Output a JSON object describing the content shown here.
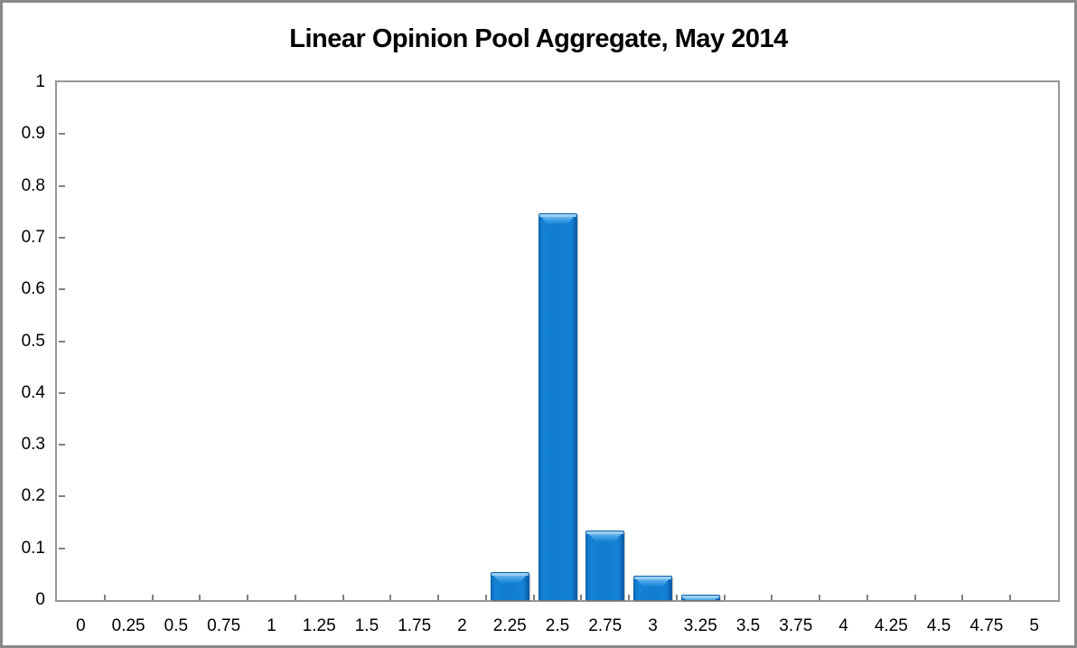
{
  "chart_data": {
    "type": "bar",
    "title": "Linear Opinion Pool Aggregate, May 2014",
    "categories": [
      "0",
      "0.25",
      "0.5",
      "0.75",
      "1",
      "1.25",
      "1.5",
      "1.75",
      "2",
      "2.25",
      "2.5",
      "2.75",
      "3",
      "3.25",
      "3.5",
      "3.75",
      "4",
      "4.25",
      "4.5",
      "4.75",
      "5"
    ],
    "values": [
      0,
      0,
      0,
      0,
      0,
      0,
      0,
      0,
      0,
      0.054,
      0.747,
      0.135,
      0.047,
      0.01,
      0,
      0,
      0,
      0,
      0,
      0,
      0
    ],
    "xlabel": "",
    "ylabel": "",
    "ylim": [
      0,
      1
    ],
    "ytick_values": [
      0,
      0.1,
      0.2,
      0.3,
      0.4,
      0.5,
      0.6,
      0.7,
      0.8,
      0.9,
      1
    ],
    "ytick_labels": [
      "0",
      "0.1",
      "0.2",
      "0.3",
      "0.4",
      "0.5",
      "0.6",
      "0.7",
      "0.8",
      "0.9",
      "1"
    ],
    "grid": "off",
    "legend": "none",
    "colors": {
      "bar_fill": "#0f7ccf",
      "bar_edge": "#0b5fa4",
      "bar_highlight": "#8ccaf4",
      "axis_border": "#969696",
      "tick": "#808080",
      "text": "#000000",
      "frame_border": "#898989",
      "background": "#ffffff"
    }
  }
}
